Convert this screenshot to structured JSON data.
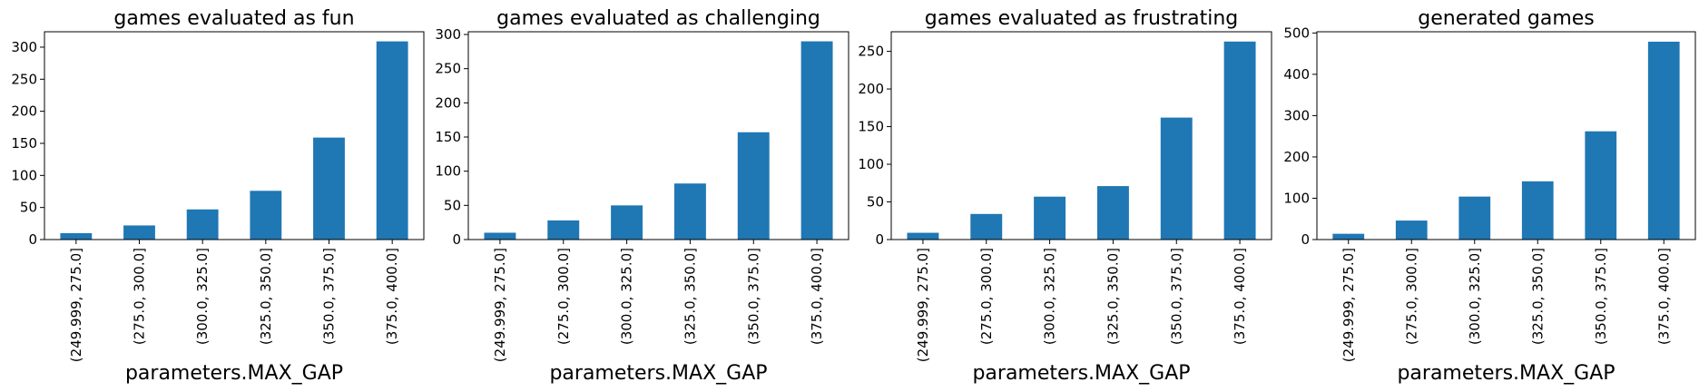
{
  "colors": {
    "bar": "#1f77b4",
    "axes": "#000000",
    "background": "#ffffff"
  },
  "chart_data": [
    {
      "type": "bar",
      "title": "games evaluated as fun",
      "xlabel": "parameters.MAX_GAP",
      "ylabel": "",
      "categories": [
        "(249.999, 275.0]",
        "(275.0, 300.0]",
        "(300.0, 325.0]",
        "(325.0, 350.0]",
        "(350.0, 375.0]",
        "(375.0, 400.0]"
      ],
      "values": [
        10,
        22,
        47,
        76,
        159,
        309
      ],
      "ylim": [
        0,
        324
      ],
      "yticks": [
        0,
        50,
        100,
        150,
        200,
        250,
        300
      ],
      "grid": false
    },
    {
      "type": "bar",
      "title": "games evaluated as challenging",
      "xlabel": "parameters.MAX_GAP",
      "ylabel": "",
      "categories": [
        "(249.999, 275.0]",
        "(275.0, 300.0]",
        "(300.0, 325.0]",
        "(325.0, 350.0]",
        "(350.0, 375.0]",
        "(375.0, 400.0]"
      ],
      "values": [
        10,
        28,
        50,
        82,
        157,
        290
      ],
      "ylim": [
        0,
        304
      ],
      "yticks": [
        0,
        50,
        100,
        150,
        200,
        250,
        300
      ],
      "grid": false
    },
    {
      "type": "bar",
      "title": "games evaluated as frustrating",
      "xlabel": "parameters.MAX_GAP",
      "ylabel": "",
      "categories": [
        "(249.999, 275.0]",
        "(275.0, 300.0]",
        "(300.0, 325.0]",
        "(325.0, 350.0]",
        "(350.0, 375.0]",
        "(375.0, 400.0]"
      ],
      "values": [
        9,
        34,
        57,
        71,
        162,
        263
      ],
      "ylim": [
        0,
        276
      ],
      "yticks": [
        0,
        50,
        100,
        150,
        200,
        250,
        300
      ],
      "grid": false
    },
    {
      "type": "bar",
      "title": "generated games",
      "xlabel": "parameters.MAX_GAP",
      "ylabel": "",
      "categories": [
        "(249.999, 275.0]",
        "(275.0, 300.0]",
        "(300.0, 325.0]",
        "(325.0, 350.0]",
        "(350.0, 375.0]",
        "(375.0, 400.0]"
      ],
      "values": [
        14,
        46,
        104,
        141,
        262,
        479
      ],
      "ylim": [
        0,
        503
      ],
      "yticks": [
        0,
        100,
        200,
        300,
        400,
        500
      ],
      "grid": false
    }
  ]
}
